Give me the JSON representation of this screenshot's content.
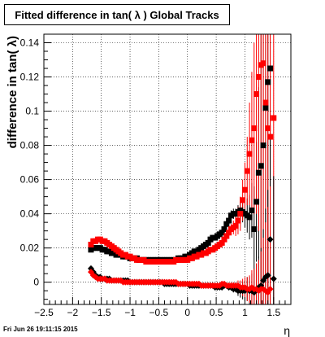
{
  "chart_data": {
    "type": "scatter",
    "title": "Fitted difference in tan( λ )  Global Tracks",
    "xlabel": "η",
    "ylabel": "difference in tan( λ)",
    "xlim": [
      -2.5,
      1.8
    ],
    "ylim": [
      -0.013,
      0.145
    ],
    "x_ticks": [
      -2.5,
      -2,
      -1.5,
      -1,
      -0.5,
      0,
      0.5,
      1,
      1.5
    ],
    "x_tick_labels": [
      "−2.5",
      "−2",
      "−1.5",
      "−1",
      "−0.5",
      "0",
      "0.5",
      "1",
      "1.5"
    ],
    "y_ticks": [
      0,
      0.02,
      0.04,
      0.06,
      0.08,
      0.1,
      0.12,
      0.14
    ],
    "y_tick_labels": [
      "0",
      "0.02",
      "0.04",
      "0.06",
      "0.08",
      "0.1",
      "0.12",
      "0.14"
    ],
    "grid": true,
    "series": [
      {
        "color": "#000000",
        "marker": "square",
        "x": [
          -1.68,
          -1.64,
          -1.6,
          -1.56,
          -1.52,
          -1.48,
          -1.44,
          -1.4,
          -1.36,
          -1.32,
          -1.28,
          -1.24,
          -1.2,
          -1.16,
          -1.12,
          -1.08,
          -1.04,
          -1.0,
          -0.96,
          -0.92,
          -0.88,
          -0.84,
          -0.8,
          -0.76,
          -0.72,
          -0.68,
          -0.64,
          -0.6,
          -0.56,
          -0.52,
          -0.48,
          -0.44,
          -0.4,
          -0.36,
          -0.32,
          -0.28,
          -0.24,
          -0.2,
          -0.16,
          -0.12,
          -0.08,
          -0.04,
          0.0,
          0.04,
          0.08,
          0.12,
          0.16,
          0.2,
          0.24,
          0.28,
          0.32,
          0.36,
          0.4,
          0.44,
          0.48,
          0.52,
          0.56,
          0.6,
          0.64,
          0.68,
          0.72,
          0.76,
          0.8,
          0.84,
          0.88,
          0.92,
          0.96,
          1.0,
          1.04,
          1.08,
          1.12,
          1.16,
          1.2,
          1.24,
          1.28,
          1.32,
          1.36,
          1.4,
          1.44
        ],
        "y": [
          0.019,
          0.02,
          0.02,
          0.02,
          0.02,
          0.019,
          0.019,
          0.018,
          0.018,
          0.017,
          0.017,
          0.016,
          0.016,
          0.016,
          0.015,
          0.015,
          0.015,
          0.014,
          0.014,
          0.014,
          0.014,
          0.013,
          0.013,
          0.013,
          0.013,
          0.013,
          0.013,
          0.013,
          0.013,
          0.013,
          0.013,
          0.013,
          0.013,
          0.013,
          0.013,
          0.013,
          0.013,
          0.013,
          0.014,
          0.014,
          0.014,
          0.015,
          0.015,
          0.016,
          0.017,
          0.018,
          0.018,
          0.019,
          0.02,
          0.021,
          0.022,
          0.023,
          0.025,
          0.026,
          0.026,
          0.027,
          0.028,
          0.029,
          0.031,
          0.034,
          0.036,
          0.039,
          0.04,
          0.04,
          0.041,
          0.042,
          0.041,
          0.04,
          0.039,
          0.038,
          0.042,
          0.031,
          0.047,
          0.064,
          0.068,
          0.08,
          0.102,
          0.117,
          0.125
        ],
        "yerr": [
          0.0005,
          0.0005,
          0.0005,
          0.0005,
          0.0005,
          0.0005,
          0.0005,
          0.0005,
          0.0005,
          0.0005,
          0.0005,
          0.0005,
          0.0005,
          0.0005,
          0.0005,
          0.0005,
          0.0005,
          0.0005,
          0.0005,
          0.0005,
          0.0005,
          0.0005,
          0.0005,
          0.0005,
          0.0005,
          0.0005,
          0.0005,
          0.0005,
          0.0005,
          0.0005,
          0.0005,
          0.0005,
          0.0005,
          0.0005,
          0.0005,
          0.0005,
          0.0005,
          0.0005,
          0.0005,
          0.0005,
          0.0005,
          0.0005,
          0.0005,
          0.0005,
          0.0005,
          0.0005,
          0.0005,
          0.0005,
          0.0005,
          0.0005,
          0.0005,
          0.0005,
          0.0005,
          0.0005,
          0.0005,
          0.0005,
          0.0005,
          0.001,
          0.001,
          0.002,
          0.002,
          0.003,
          0.003,
          0.003,
          0.004,
          0.005,
          0.006,
          0.008,
          0.01,
          0.013,
          0.016,
          0.025,
          0.035,
          0.05,
          0.08,
          0.1,
          0.13,
          0.14,
          0.15
        ]
      },
      {
        "color": "#ff0000",
        "marker": "square",
        "x": [
          -1.68,
          -1.64,
          -1.6,
          -1.56,
          -1.52,
          -1.48,
          -1.44,
          -1.4,
          -1.36,
          -1.32,
          -1.28,
          -1.24,
          -1.2,
          -1.16,
          -1.12,
          -1.08,
          -1.04,
          -1.0,
          -0.96,
          -0.92,
          -0.88,
          -0.84,
          -0.8,
          -0.76,
          -0.72,
          -0.68,
          -0.64,
          -0.6,
          -0.56,
          -0.52,
          -0.48,
          -0.44,
          -0.4,
          -0.36,
          -0.32,
          -0.28,
          -0.24,
          -0.2,
          -0.16,
          -0.12,
          -0.08,
          -0.04,
          0.0,
          0.04,
          0.08,
          0.12,
          0.16,
          0.2,
          0.24,
          0.28,
          0.32,
          0.36,
          0.4,
          0.44,
          0.48,
          0.52,
          0.56,
          0.6,
          0.64,
          0.68,
          0.72,
          0.76,
          0.8,
          0.84,
          0.88,
          0.92,
          0.96,
          1.0,
          1.04,
          1.08,
          1.12,
          1.16,
          1.2,
          1.24,
          1.28,
          1.32,
          1.36,
          1.4,
          1.44,
          1.5
        ],
        "y": [
          0.022,
          0.024,
          0.024,
          0.025,
          0.025,
          0.024,
          0.024,
          0.023,
          0.022,
          0.021,
          0.02,
          0.019,
          0.018,
          0.017,
          0.016,
          0.016,
          0.015,
          0.015,
          0.014,
          0.014,
          0.013,
          0.013,
          0.013,
          0.013,
          0.012,
          0.012,
          0.012,
          0.012,
          0.012,
          0.012,
          0.012,
          0.012,
          0.012,
          0.012,
          0.012,
          0.012,
          0.012,
          0.013,
          0.013,
          0.013,
          0.013,
          0.013,
          0.013,
          0.014,
          0.014,
          0.015,
          0.015,
          0.016,
          0.016,
          0.017,
          0.017,
          0.018,
          0.019,
          0.019,
          0.02,
          0.021,
          0.022,
          0.023,
          0.025,
          0.027,
          0.029,
          0.031,
          0.032,
          0.033,
          0.036,
          0.04,
          0.048,
          0.054,
          0.065,
          0.075,
          0.083,
          0.09,
          0.11,
          0.12,
          0.127,
          0.128,
          0.105,
          0.09,
          0.085,
          0.096
        ],
        "yerr": [
          0.0005,
          0.0005,
          0.0005,
          0.0005,
          0.0005,
          0.0005,
          0.0005,
          0.0005,
          0.0005,
          0.0005,
          0.0005,
          0.0005,
          0.0005,
          0.0005,
          0.0005,
          0.0005,
          0.0005,
          0.0005,
          0.0005,
          0.0005,
          0.0005,
          0.0005,
          0.0005,
          0.0005,
          0.0005,
          0.0005,
          0.0005,
          0.0005,
          0.0005,
          0.0005,
          0.0005,
          0.0005,
          0.0005,
          0.0005,
          0.0005,
          0.0005,
          0.0005,
          0.0005,
          0.0005,
          0.0005,
          0.0005,
          0.0005,
          0.0005,
          0.0005,
          0.0005,
          0.0005,
          0.0005,
          0.0005,
          0.0005,
          0.0005,
          0.0005,
          0.0005,
          0.0005,
          0.0005,
          0.0005,
          0.0005,
          0.0005,
          0.001,
          0.001,
          0.002,
          0.002,
          0.003,
          0.004,
          0.006,
          0.008,
          0.01,
          0.012,
          0.016,
          0.02,
          0.03,
          0.04,
          0.05,
          0.07,
          0.09,
          0.12,
          0.13,
          0.14,
          0.15,
          0.15,
          0.15
        ]
      },
      {
        "color": "#000000",
        "marker": "diamond",
        "x": [
          -1.68,
          -1.64,
          -1.6,
          -1.56,
          -1.52,
          -1.48,
          -1.44,
          -1.4,
          -1.36,
          -1.32,
          -1.28,
          -1.24,
          -1.2,
          -1.16,
          -1.12,
          -1.08,
          -1.04,
          -1.0,
          -0.96,
          -0.92,
          -0.88,
          -0.84,
          -0.8,
          -0.76,
          -0.72,
          -0.68,
          -0.64,
          -0.6,
          -0.56,
          -0.52,
          -0.48,
          -0.44,
          -0.4,
          -0.36,
          -0.32,
          -0.28,
          -0.24,
          -0.2,
          -0.16,
          -0.12,
          -0.08,
          -0.04,
          0.0,
          0.04,
          0.08,
          0.12,
          0.16,
          0.2,
          0.24,
          0.28,
          0.32,
          0.36,
          0.4,
          0.44,
          0.48,
          0.52,
          0.56,
          0.6,
          0.64,
          0.68,
          0.72,
          0.76,
          0.8,
          0.84,
          0.88,
          0.92,
          0.96,
          1.0,
          1.04,
          1.08,
          1.12,
          1.16,
          1.2,
          1.24,
          1.28,
          1.32,
          1.36,
          1.4,
          1.44,
          1.5
        ],
        "y": [
          0.008,
          0.006,
          0.004,
          0.003,
          0.003,
          0.002,
          0.002,
          0.002,
          0.002,
          0.001,
          0.001,
          0.001,
          0.001,
          0.001,
          0.001,
          0.001,
          0.001,
          0.0,
          0.0,
          0.0,
          0.0,
          0.0,
          0.0,
          0.0,
          0.0,
          0.0,
          0.0,
          0.0,
          0.0,
          0.0,
          0.0,
          0.0,
          -0.001,
          -0.001,
          -0.001,
          -0.001,
          -0.001,
          -0.001,
          -0.001,
          -0.001,
          -0.001,
          -0.001,
          -0.001,
          -0.002,
          -0.002,
          -0.002,
          -0.002,
          -0.002,
          -0.002,
          -0.002,
          -0.002,
          -0.002,
          -0.002,
          -0.002,
          -0.003,
          -0.003,
          -0.003,
          -0.003,
          -0.002,
          -0.002,
          -0.003,
          -0.003,
          -0.004,
          -0.004,
          -0.005,
          -0.005,
          -0.005,
          -0.005,
          -0.004,
          -0.005,
          -0.005,
          -0.006,
          -0.004,
          -0.003,
          -0.002,
          0.001,
          0.003,
          0.004,
          0.025,
          0.002
        ],
        "yerr": [
          0.0005,
          0.0005,
          0.0005,
          0.0005,
          0.0005,
          0.0005,
          0.0005,
          0.0005,
          0.0005,
          0.0005,
          0.0005,
          0.0005,
          0.0005,
          0.0005,
          0.0005,
          0.0005,
          0.0005,
          0.0005,
          0.0005,
          0.0005,
          0.0005,
          0.0005,
          0.0005,
          0.0005,
          0.0005,
          0.0005,
          0.0005,
          0.0005,
          0.0005,
          0.0005,
          0.0005,
          0.0005,
          0.0005,
          0.0005,
          0.0005,
          0.0005,
          0.0005,
          0.0005,
          0.0005,
          0.0005,
          0.0005,
          0.0005,
          0.0005,
          0.0005,
          0.0005,
          0.0005,
          0.0005,
          0.0005,
          0.0005,
          0.0005,
          0.0005,
          0.0005,
          0.0005,
          0.0005,
          0.0005,
          0.0005,
          0.0005,
          0.001,
          0.001,
          0.001,
          0.001,
          0.002,
          0.002,
          0.002,
          0.003,
          0.004,
          0.005,
          0.006,
          0.007,
          0.008,
          0.01,
          0.012,
          0.015,
          0.018,
          0.022,
          0.03,
          0.04,
          0.05,
          0.06,
          0.06
        ]
      },
      {
        "color": "#ff0000",
        "marker": "diamond",
        "x": [
          -1.68,
          -1.64,
          -1.6,
          -1.56,
          -1.52,
          -1.48,
          -1.44,
          -1.4,
          -1.36,
          -1.32,
          -1.28,
          -1.24,
          -1.2,
          -1.16,
          -1.12,
          -1.08,
          -1.04,
          -1.0,
          -0.96,
          -0.92,
          -0.88,
          -0.84,
          -0.8,
          -0.76,
          -0.72,
          -0.68,
          -0.64,
          -0.6,
          -0.56,
          -0.52,
          -0.48,
          -0.44,
          -0.4,
          -0.36,
          -0.32,
          -0.28,
          -0.24,
          -0.2,
          -0.16,
          -0.12,
          -0.08,
          -0.04,
          0.0,
          0.04,
          0.08,
          0.12,
          0.16,
          0.2,
          0.24,
          0.28,
          0.32,
          0.36,
          0.4,
          0.44,
          0.48,
          0.52,
          0.56,
          0.6,
          0.64,
          0.68,
          0.72,
          0.76,
          0.8,
          0.84,
          0.88,
          0.92,
          0.96,
          1.0,
          1.04,
          1.08,
          1.12,
          1.16,
          1.2,
          1.24,
          1.28,
          1.32,
          1.36,
          1.4,
          1.44
        ],
        "y": [
          0.006,
          0.004,
          0.003,
          0.002,
          0.002,
          0.002,
          0.002,
          0.001,
          0.001,
          0.001,
          0.001,
          0.001,
          0.001,
          0.001,
          0.0,
          0.0,
          0.0,
          0.0,
          0.0,
          0.0,
          0.0,
          0.0,
          0.0,
          0.0,
          0.0,
          0.0,
          0.0,
          0.0,
          0.0,
          0.0,
          0.0,
          0.0,
          0.0,
          0.0,
          0.0,
          0.0,
          0.0,
          0.0,
          -0.001,
          -0.001,
          -0.001,
          -0.001,
          -0.001,
          -0.001,
          -0.001,
          -0.001,
          -0.001,
          -0.001,
          -0.002,
          -0.002,
          -0.002,
          -0.002,
          -0.002,
          -0.002,
          -0.002,
          -0.002,
          -0.002,
          -0.001,
          -0.001,
          -0.002,
          -0.002,
          -0.002,
          -0.002,
          -0.002,
          -0.002,
          -0.003,
          -0.003,
          -0.003,
          -0.004,
          -0.004,
          -0.003,
          -0.004,
          -0.004,
          -0.005,
          -0.004,
          -0.004,
          -0.005,
          -0.006,
          -0.004
        ],
        "yerr": [
          0.0005,
          0.0005,
          0.0005,
          0.0005,
          0.0005,
          0.0005,
          0.0005,
          0.0005,
          0.0005,
          0.0005,
          0.0005,
          0.0005,
          0.0005,
          0.0005,
          0.0005,
          0.0005,
          0.0005,
          0.0005,
          0.0005,
          0.0005,
          0.0005,
          0.0005,
          0.0005,
          0.0005,
          0.0005,
          0.0005,
          0.0005,
          0.0005,
          0.0005,
          0.0005,
          0.0005,
          0.0005,
          0.0005,
          0.0005,
          0.0005,
          0.0005,
          0.0005,
          0.0005,
          0.0005,
          0.0005,
          0.0005,
          0.0005,
          0.0005,
          0.0005,
          0.0005,
          0.0005,
          0.0005,
          0.0005,
          0.0005,
          0.0005,
          0.0005,
          0.0005,
          0.0005,
          0.0005,
          0.0005,
          0.0005,
          0.0005,
          0.001,
          0.001,
          0.001,
          0.001,
          0.002,
          0.002,
          0.002,
          0.003,
          0.004,
          0.005,
          0.006,
          0.007,
          0.008,
          0.01,
          0.012,
          0.015,
          0.018,
          0.022,
          0.03,
          0.04,
          0.05,
          0.06
        ]
      }
    ]
  },
  "footer": "Fri Jun 26 19:11:15 2015"
}
